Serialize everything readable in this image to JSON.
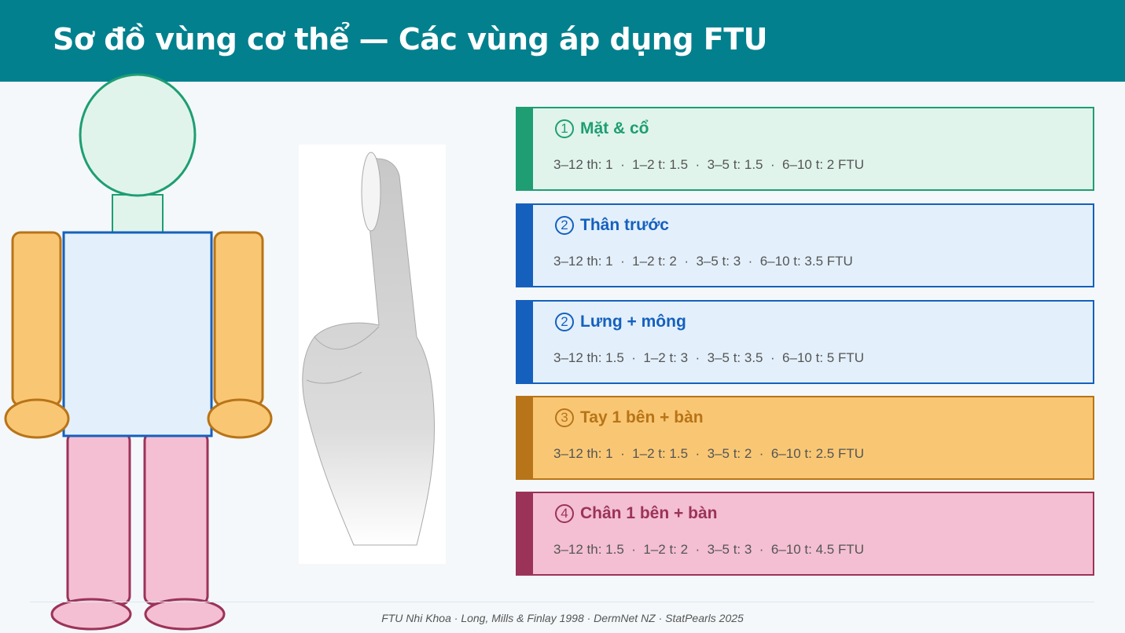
{
  "header": {
    "title": "Sơ đồ vùng cơ thể — Các vùng áp dụng FTU"
  },
  "regions": [
    {
      "number": "1",
      "name": "Mặt & cổ",
      "doses": "3–12 th: 1  ·  1–2 t: 1.5  ·  3–5 t: 1.5  ·  6–10 t: 2 FTU",
      "accent": "#1e9e72",
      "bg": "#e0f4ec"
    },
    {
      "number": "2",
      "name": "Thân trước",
      "doses": "3–12 th: 1  ·  1–2 t: 2  ·  3–5 t: 3  ·  6–10 t: 3.5 FTU",
      "accent": "#1560bd",
      "bg": "#e3f0fc"
    },
    {
      "number": "2",
      "name": "Lưng + mông",
      "doses": "3–12 th: 1.5  ·  1–2 t: 3  ·  3–5 t: 3.5  ·  6–10 t: 5 FTU",
      "accent": "#1560bd",
      "bg": "#e3f0fc"
    },
    {
      "number": "3",
      "name": "Tay 1 bên + bàn",
      "doses": "3–12 th: 1  ·  1–2 t: 1.5  ·  3–5 t: 2  ·  6–10 t: 2.5 FTU",
      "accent": "#b87418",
      "bg": "#f9c774"
    },
    {
      "number": "4",
      "name": "Chân 1 bên + bàn",
      "doses": "3–12 th: 1.5  ·  1–2 t: 2  ·  3–5 t: 3  ·  6–10 t: 4.5 FTU",
      "accent": "#9b3358",
      "bg": "#f4bfd2"
    }
  ],
  "footer": {
    "text": "FTU Nhi Khoa · Long, Mills & Finlay 1998 · DermNet NZ · StatPearls 2025"
  }
}
